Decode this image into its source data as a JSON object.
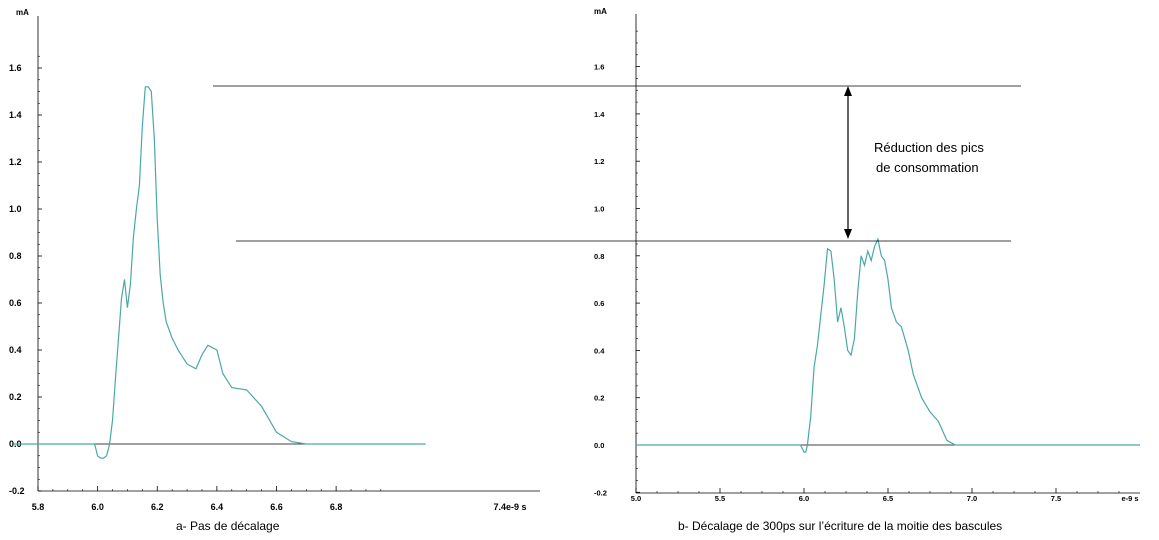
{
  "chart_data": [
    {
      "type": "line",
      "ylabel": "mA",
      "x_unit_label": "7.4e-9 s",
      "caption": "a- Pas de décalage",
      "xlim": [
        5.8,
        7.4
      ],
      "ylim": [
        -0.2,
        1.7
      ],
      "x_ticks": [
        "5.8",
        "6.0",
        "6.2",
        "6.4",
        "6.6",
        "6.8"
      ],
      "y_ticks": [
        "-0.2",
        "0.0",
        "0.2",
        "0.4",
        "0.6",
        "0.8",
        "1.0",
        "1.2",
        "1.4",
        "1.6"
      ],
      "grid": false,
      "series": [
        {
          "color": "#4aa8a8",
          "x": [
            5.72,
            5.99,
            6.0,
            6.01,
            6.02,
            6.03,
            6.04,
            6.05,
            6.06,
            6.07,
            6.08,
            6.09,
            6.1,
            6.11,
            6.12,
            6.13,
            6.14,
            6.15,
            6.16,
            6.17,
            6.18,
            6.19,
            6.2,
            6.21,
            6.22,
            6.23,
            6.25,
            6.27,
            6.3,
            6.33,
            6.35,
            6.37,
            6.4,
            6.42,
            6.45,
            6.5,
            6.55,
            6.6,
            6.65,
            6.7,
            6.8,
            6.9,
            7.0,
            7.1
          ],
          "y": [
            0.0,
            0.0,
            -0.05,
            -0.06,
            -0.06,
            -0.05,
            0.0,
            0.1,
            0.28,
            0.45,
            0.62,
            0.7,
            0.58,
            0.68,
            0.88,
            1.0,
            1.1,
            1.35,
            1.52,
            1.52,
            1.5,
            1.3,
            0.95,
            0.72,
            0.6,
            0.52,
            0.45,
            0.4,
            0.34,
            0.32,
            0.38,
            0.42,
            0.4,
            0.3,
            0.24,
            0.23,
            0.16,
            0.05,
            0.01,
            0.0,
            0.0,
            0.0,
            0.0,
            0.0
          ]
        }
      ],
      "baseline_x": [
        5.72,
        7.0
      ]
    },
    {
      "type": "line",
      "ylabel": "mA",
      "x_unit_label": "e-9 s",
      "caption": "b- Décalage de 300ps sur l’écriture de la moitie des bascules",
      "xlim": [
        5.0,
        8.0
      ],
      "ylim": [
        -0.2,
        1.8
      ],
      "x_ticks": [
        "5.0",
        "5.5",
        "6.0",
        "6.5",
        "7.0",
        "7.5"
      ],
      "y_ticks": [
        "-0.2",
        "0.0",
        "0.2",
        "0.4",
        "0.6",
        "0.8",
        "1.0",
        "1.2",
        "1.4",
        "1.6"
      ],
      "grid": false,
      "series": [
        {
          "color": "#4aa8a8",
          "x": [
            5.0,
            5.98,
            6.0,
            6.01,
            6.02,
            6.04,
            6.06,
            6.08,
            6.1,
            6.12,
            6.14,
            6.16,
            6.18,
            6.2,
            6.22,
            6.24,
            6.26,
            6.28,
            6.3,
            6.32,
            6.34,
            6.36,
            6.38,
            6.4,
            6.42,
            6.44,
            6.46,
            6.48,
            6.5,
            6.52,
            6.55,
            6.58,
            6.62,
            6.65,
            6.7,
            6.75,
            6.8,
            6.85,
            6.9,
            6.95,
            7.0,
            7.1,
            7.3,
            7.6,
            8.0
          ],
          "y": [
            0.0,
            0.0,
            -0.03,
            -0.03,
            0.0,
            0.12,
            0.33,
            0.42,
            0.55,
            0.68,
            0.83,
            0.82,
            0.7,
            0.52,
            0.58,
            0.5,
            0.4,
            0.38,
            0.45,
            0.65,
            0.8,
            0.76,
            0.82,
            0.78,
            0.84,
            0.87,
            0.8,
            0.78,
            0.7,
            0.58,
            0.52,
            0.5,
            0.4,
            0.3,
            0.2,
            0.14,
            0.1,
            0.02,
            0.0,
            0.0,
            0.0,
            0.0,
            0.0,
            0.0,
            0.0
          ]
        }
      ],
      "baseline_x": [
        5.0,
        8.0
      ]
    }
  ],
  "annotation": {
    "line1": "Réduction des pics",
    "line2": "de consommation"
  }
}
